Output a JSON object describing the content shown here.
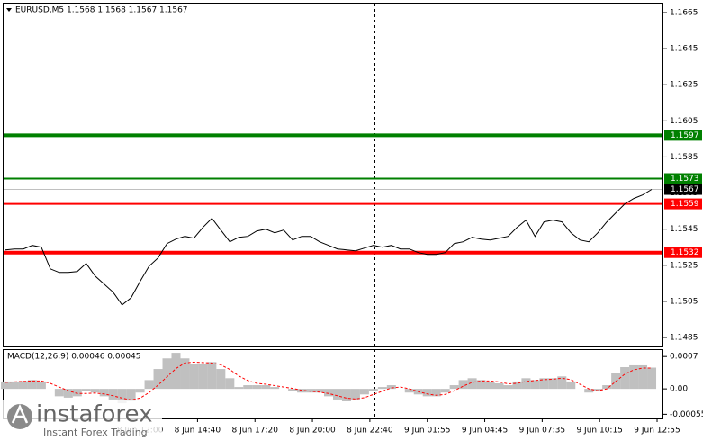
{
  "chart_data": [
    {
      "type": "line",
      "title": "EURUSD,M5  1.1568 1.1568 1.1567 1.1567",
      "color": "#000000",
      "x": [
        1,
        6,
        11,
        16,
        21,
        26,
        31,
        36,
        41,
        46,
        51,
        56,
        61,
        66,
        71,
        76,
        81,
        86,
        91,
        96,
        101,
        106,
        111,
        116,
        121,
        126,
        131,
        136,
        141,
        146,
        151,
        156,
        161,
        166,
        171,
        176,
        181,
        186,
        191,
        196,
        201,
        206,
        211,
        216,
        221,
        226,
        231,
        236,
        241,
        246,
        251,
        256,
        261,
        266,
        271,
        276,
        281,
        286,
        291,
        296,
        301,
        306,
        311,
        316,
        321,
        326,
        331,
        336,
        341,
        346,
        351,
        356,
        361
      ],
      "values": [
        1.15335,
        1.1534,
        1.1534,
        1.1536,
        1.1535,
        1.1523,
        1.1521,
        1.1521,
        1.15215,
        1.1526,
        1.1519,
        1.15145,
        1.151,
        1.1503,
        1.1507,
        1.1516,
        1.15245,
        1.1529,
        1.1537,
        1.15395,
        1.1541,
        1.154,
        1.1546,
        1.1551,
        1.15445,
        1.1538,
        1.15405,
        1.1541,
        1.1544,
        1.1545,
        1.1543,
        1.15445,
        1.1539,
        1.1541,
        1.1541,
        1.1538,
        1.1536,
        1.1534,
        1.15335,
        1.1533,
        1.15345,
        1.1536,
        1.1535,
        1.1536,
        1.1534,
        1.1534,
        1.1532,
        1.1531,
        1.1531,
        1.1532,
        1.1537,
        1.1538,
        1.15405,
        1.15395,
        1.1539,
        1.154,
        1.1541,
        1.1546,
        1.155,
        1.1541,
        1.1549,
        1.155,
        1.1549,
        1.1543,
        1.1539,
        1.1538,
        1.1543,
        1.1549,
        1.1554,
        1.1559,
        1.1562,
        1.1564,
        1.1567
      ],
      "xlim": [
        0,
        367
      ],
      "ylim": [
        1.148,
        1.167
      ],
      "yticks": [
        1.1485,
        1.1505,
        1.1525,
        1.1545,
        1.1565,
        1.1585,
        1.1605,
        1.1625,
        1.1645,
        1.1665
      ],
      "last_price": 1.1567,
      "levels": [
        {
          "value": 1.1597,
          "color": "#008000",
          "style": "thick"
        },
        {
          "value": 1.1573,
          "color": "#008000",
          "style": "thin"
        },
        {
          "value": 1.1559,
          "color": "#ff0000",
          "style": "thin"
        },
        {
          "value": 1.1532,
          "color": "#ff0000",
          "style": "thick"
        }
      ]
    },
    {
      "type": "macd",
      "title": "MACD(12,26,9) 0.00046 0.00045",
      "color": "#c0c0c0",
      "signal_color": "#ff0000",
      "x": [
        1,
        6,
        11,
        16,
        21,
        26,
        31,
        36,
        41,
        46,
        51,
        56,
        61,
        66,
        71,
        76,
        81,
        86,
        91,
        96,
        101,
        106,
        111,
        116,
        121,
        126,
        131,
        136,
        141,
        146,
        151,
        156,
        161,
        166,
        171,
        176,
        181,
        186,
        191,
        196,
        201,
        206,
        211,
        216,
        221,
        226,
        231,
        236,
        241,
        246,
        251,
        256,
        261,
        266,
        271,
        276,
        281,
        286,
        291,
        296,
        301,
        306,
        311,
        316,
        321,
        326,
        331,
        336,
        341,
        346,
        351,
        356,
        361
      ],
      "values": [
        0.00016,
        0.00016,
        0.00017,
        0.00019,
        0.00016,
        0,
        -0.00016,
        -0.00019,
        -0.00016,
        -4e-05,
        -8e-05,
        -0.00016,
        -0.00023,
        -0.00031,
        -0.00027,
        -8e-05,
        0.00019,
        0.00043,
        0.00066,
        0.00078,
        0.00066,
        0.00054,
        0.00054,
        0.00058,
        0.00043,
        0.00023,
        4e-05,
        8e-05,
        8e-05,
        8e-05,
        4e-05,
        0,
        -4e-05,
        -8e-05,
        -8e-05,
        -8e-05,
        -0.00016,
        -0.00023,
        -0.00027,
        -0.00023,
        -0.00012,
        -4e-05,
        4e-05,
        8e-05,
        0,
        -8e-05,
        -0.00012,
        -0.00016,
        -0.00016,
        -8e-05,
        8e-05,
        0.00019,
        0.00023,
        0.00019,
        0.00016,
        0.00012,
        8e-05,
        0.00016,
        0.00023,
        0.00019,
        0.00023,
        0.00023,
        0.00027,
        0.00016,
        0,
        -8e-05,
        -4e-05,
        8e-05,
        0.00035,
        0.00047,
        0.00051,
        0.00051,
        0.00046
      ],
      "signal_values": [
        0.00014,
        0.00015,
        0.00016,
        0.00017,
        0.00017,
        0.00012,
        4e-05,
        -4e-05,
        -0.0001,
        -0.0001,
        -9e-05,
        -0.00011,
        -0.00015,
        -0.0002,
        -0.00024,
        -0.0002,
        -8e-05,
        8e-05,
        0.00026,
        0.00044,
        0.00056,
        0.00058,
        0.00057,
        0.00056,
        0.00052,
        0.00042,
        0.00028,
        0.00018,
        0.00012,
        0.0001,
        7e-05,
        4e-05,
        1e-05,
        -3e-05,
        -5e-05,
        -7e-05,
        -0.0001,
        -0.00015,
        -0.0002,
        -0.00022,
        -0.00019,
        -0.00012,
        -5e-05,
        2e-05,
        4e-05,
        0,
        -6e-05,
        -0.00011,
        -0.00014,
        -0.00012,
        -4e-05,
        6e-05,
        0.00014,
        0.00017,
        0.00017,
        0.00015,
        0.00011,
        0.00012,
        0.00016,
        0.00018,
        0.0002,
        0.00021,
        0.00023,
        0.0002,
        0.0001,
        0,
        -4e-05,
        0,
        0.00016,
        0.00032,
        0.00041,
        0.00045,
        0.00045
      ],
      "xlim": [
        0,
        367
      ],
      "ylim": [
        -0.00064,
        0.00084
      ],
      "yticks": [
        0.0007,
        {
          "value": 0,
          "label": "0.00"
        },
        -0.00055
      ],
      "xticks": [
        {
          "value": 76,
          "label": "8 Jun 12:00"
        },
        {
          "value": 108,
          "label": "8 Jun 14:40"
        },
        {
          "value": 140,
          "label": "8 Jun 17:20"
        },
        {
          "value": 172,
          "label": "8 Jun 20:00"
        },
        {
          "value": 204,
          "label": "8 Jun 22:40"
        },
        {
          "value": 236,
          "label": "9 Jun 01:55"
        },
        {
          "value": 268,
          "label": "9 Jun 04:45"
        },
        {
          "value": 300,
          "label": "9 Jun 07:35"
        },
        {
          "value": 332,
          "label": "9 Jun 10:15"
        },
        {
          "value": 364,
          "label": "9 Jun 12:55"
        }
      ]
    }
  ],
  "watermark": {
    "name": "instaforex",
    "tagline": "Instant Forex Trading"
  }
}
